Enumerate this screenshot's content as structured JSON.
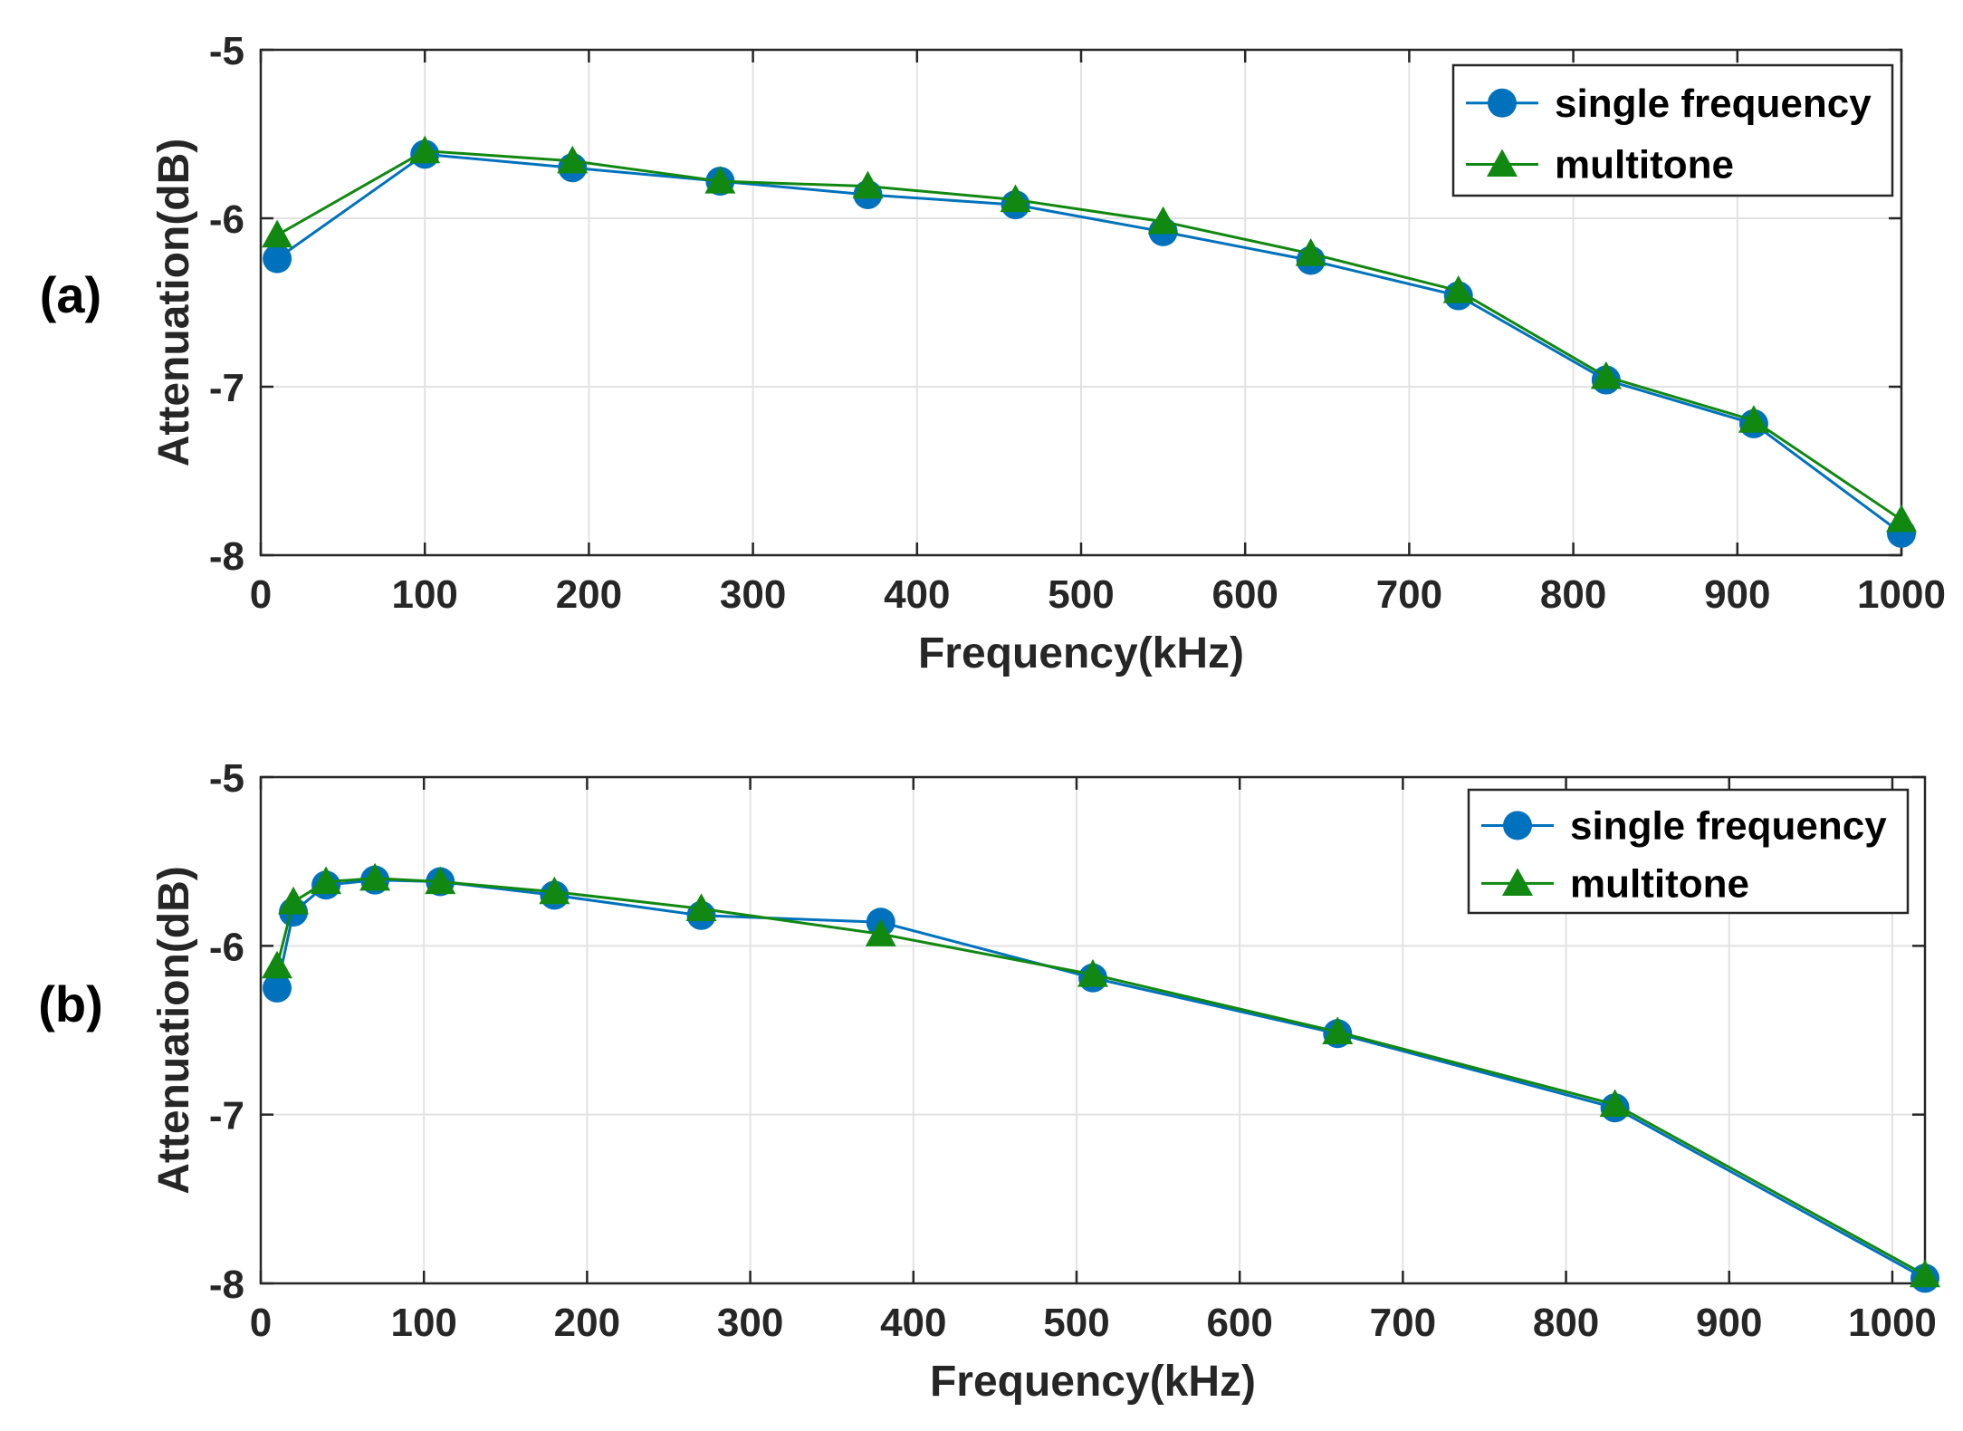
{
  "chart_data": [
    {
      "type": "line",
      "panel_label": "(a)",
      "xlabel": "Frequency(kHz)",
      "ylabel": "Attenuation(dB)",
      "xlim": [
        0,
        1000
      ],
      "ylim": [
        -8,
        -5
      ],
      "xticks": [
        "0",
        "100",
        "200",
        "300",
        "400",
        "500",
        "600",
        "700",
        "800",
        "900",
        "1000"
      ],
      "yticks": [
        "-5",
        "-6",
        "-7",
        "-8"
      ],
      "grid": true,
      "legend_position": "top-right",
      "series": [
        {
          "name": "single frequency",
          "color": "#0072BD",
          "marker": "circle",
          "x": [
            10,
            100,
            190,
            280,
            370,
            460,
            550,
            640,
            730,
            820,
            910,
            1000
          ],
          "y": [
            -6.24,
            -5.62,
            -5.7,
            -5.78,
            -5.86,
            -5.92,
            -6.08,
            -6.25,
            -6.46,
            -6.96,
            -7.22,
            -7.87
          ]
        },
        {
          "name": "multitone",
          "color": "#118811",
          "marker": "triangle",
          "x": [
            10,
            100,
            190,
            280,
            370,
            460,
            550,
            640,
            730,
            820,
            910,
            1000
          ],
          "y": [
            -6.1,
            -5.6,
            -5.66,
            -5.78,
            -5.81,
            -5.89,
            -6.02,
            -6.21,
            -6.43,
            -6.94,
            -7.2,
            -7.79
          ]
        }
      ]
    },
    {
      "type": "line",
      "panel_label": "(b)",
      "xlabel": "Frequency(kHz)",
      "ylabel": "Attenuation(dB)",
      "xlim": [
        0,
        1020
      ],
      "ylim": [
        -8,
        -5
      ],
      "xticks": [
        "0",
        "100",
        "200",
        "300",
        "400",
        "500",
        "600",
        "700",
        "800",
        "900",
        "1000"
      ],
      "yticks": [
        "-5",
        "-6",
        "-7",
        "-8"
      ],
      "grid": true,
      "legend_position": "top-right",
      "series": [
        {
          "name": "single frequency",
          "color": "#0072BD",
          "marker": "circle",
          "x": [
            10,
            20,
            40,
            70,
            110,
            180,
            270,
            380,
            510,
            660,
            830,
            1020
          ],
          "y": [
            -6.25,
            -5.8,
            -5.64,
            -5.61,
            -5.62,
            -5.7,
            -5.82,
            -5.86,
            -6.19,
            -6.52,
            -6.96,
            -7.97
          ]
        },
        {
          "name": "multitone",
          "color": "#118811",
          "marker": "triangle",
          "x": [
            10,
            20,
            40,
            70,
            110,
            180,
            270,
            380,
            510,
            660,
            830,
            1020
          ],
          "y": [
            -6.12,
            -5.74,
            -5.62,
            -5.6,
            -5.62,
            -5.68,
            -5.78,
            -5.93,
            -6.17,
            -6.51,
            -6.94,
            -7.95
          ]
        }
      ]
    }
  ]
}
